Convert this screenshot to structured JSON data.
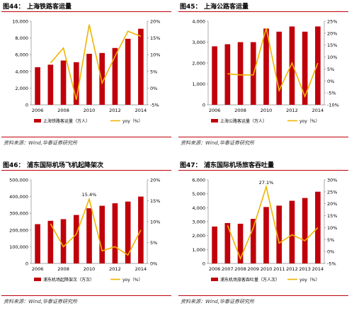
{
  "colors": {
    "bar": "#c0000b",
    "line": "#f0b400",
    "axis": "#888888",
    "frame": "#c0000b"
  },
  "source_text": "资料来源：Wind,华泰证券研究所",
  "chart_data": [
    {
      "type": "bar",
      "figure_label": "图44：",
      "title": "上海铁路客运量",
      "categories": [
        "2006",
        "2007",
        "2008",
        "2009",
        "2010",
        "2011",
        "2012",
        "2013",
        "2014"
      ],
      "x_tick_labels": [
        "2006",
        "2008",
        "2010",
        "2012",
        "2014"
      ],
      "series": [
        {
          "name": "上海铁路客运量（万人）",
          "axis": "left",
          "values": [
            4500,
            4800,
            5300,
            5100,
            6100,
            6200,
            6800,
            7900,
            9100
          ]
        },
        {
          "name": "yoy（%）",
          "axis": "right",
          "type": "line",
          "values": [
            null,
            7.5,
            12,
            -3.5,
            19,
            1.5,
            9.5,
            17,
            15.5
          ]
        }
      ],
      "ylim_left": [
        0,
        10000
      ],
      "ylim_right": [
        -5,
        20
      ],
      "left_ticks": [
        "0",
        "2,000",
        "4,000",
        "6,000",
        "8,000",
        "10,000"
      ],
      "left_tick_values": [
        0,
        2000,
        4000,
        6000,
        8000,
        10000
      ],
      "right_ticks": [
        "-5%",
        "0%",
        "5%",
        "10%",
        "15%",
        "20%"
      ],
      "right_tick_values": [
        -5,
        0,
        5,
        10,
        15,
        20
      ],
      "annotations": []
    },
    {
      "type": "bar",
      "figure_label": "图45：",
      "title": "上海公路客运量",
      "categories": [
        "2006",
        "2007",
        "2008",
        "2009",
        "2010",
        "2011",
        "2012",
        "2013",
        "2014"
      ],
      "x_tick_labels": [
        "2006",
        "2008",
        "2010",
        "2012",
        "2014"
      ],
      "series": [
        {
          "name": "上海公路客运量（万人）",
          "axis": "left",
          "values": [
            2800,
            2900,
            3000,
            3000,
            3650,
            3500,
            3750,
            3500,
            3750
          ]
        },
        {
          "name": "yoy（%）",
          "axis": "right",
          "type": "line",
          "values": [
            null,
            3,
            2.5,
            2.5,
            22,
            -4,
            7.5,
            -6.5,
            7.5
          ]
        }
      ],
      "ylim_left": [
        0,
        4000
      ],
      "ylim_right": [
        -10,
        25
      ],
      "left_ticks": [
        "0",
        "1,000",
        "2,000",
        "3,000",
        "4,000"
      ],
      "left_tick_values": [
        0,
        1000,
        2000,
        3000,
        4000
      ],
      "right_ticks": [
        "-10%",
        "-5%",
        "0%",
        "5%",
        "10%",
        "15%",
        "20%",
        "25%"
      ],
      "right_tick_values": [
        -10,
        -5,
        0,
        5,
        10,
        15,
        20,
        25
      ],
      "annotations": []
    },
    {
      "type": "bar",
      "figure_label": "图46：",
      "title": "浦东国际机场飞机起降架次",
      "categories": [
        "2006",
        "2007",
        "2008",
        "2009",
        "2010",
        "2011",
        "2012",
        "2013",
        "2014"
      ],
      "x_tick_labels": [
        "2006",
        "2008",
        "2010",
        "2012",
        "2014"
      ],
      "series": [
        {
          "name": "浦东机场起降架次（万次）",
          "axis": "left",
          "values": [
            235000,
            255000,
            265000,
            290000,
            330000,
            345000,
            360000,
            370000,
            400000
          ]
        },
        {
          "name": "yoy（%）",
          "axis": "right",
          "type": "line",
          "values": [
            null,
            9.5,
            4,
            7,
            15.4,
            3,
            4,
            2,
            8
          ]
        }
      ],
      "ylim_left": [
        0,
        500000
      ],
      "ylim_right": [
        0,
        20
      ],
      "left_ticks": [
        "0",
        "100,000",
        "200,000",
        "300,000",
        "400,000",
        "500,000"
      ],
      "left_tick_values": [
        0,
        100000,
        200000,
        300000,
        400000,
        500000
      ],
      "right_ticks": [
        "0%",
        "5%",
        "10%",
        "15%",
        "20%"
      ],
      "right_tick_values": [
        0,
        5,
        10,
        15,
        20
      ],
      "annotations": [
        {
          "text": "15.4%",
          "index": 4,
          "series": 1
        }
      ]
    },
    {
      "type": "bar",
      "figure_label": "图47：",
      "title": "浦东国际机场旅客吞吐量",
      "categories": [
        "2006",
        "2007",
        "2008",
        "2009",
        "2010",
        "2011",
        "2012",
        "2013",
        "2014"
      ],
      "x_tick_labels": [
        "2006",
        "2007",
        "2008",
        "2009",
        "2010",
        "2011",
        "2012",
        "2013",
        "2014"
      ],
      "series": [
        {
          "name": "浦东机场旅客吞吐量（万人次）",
          "axis": "left",
          "values": [
            2650,
            2900,
            2850,
            3200,
            4050,
            4150,
            4500,
            4700,
            5150
          ]
        },
        {
          "name": "yoy（%）",
          "axis": "right",
          "type": "line",
          "values": [
            null,
            11,
            -3,
            10,
            27.1,
            3.5,
            7,
            4.5,
            10
          ]
        }
      ],
      "ylim_left": [
        0,
        6000
      ],
      "ylim_right": [
        -5,
        30
      ],
      "left_ticks": [
        "0",
        "1,000",
        "2,000",
        "3,000",
        "4,000",
        "5,000",
        "6,000"
      ],
      "left_tick_values": [
        0,
        1000,
        2000,
        3000,
        4000,
        5000,
        6000
      ],
      "right_ticks": [
        "-5%",
        "0%",
        "5%",
        "10%",
        "15%",
        "20%",
        "25%",
        "30%"
      ],
      "right_tick_values": [
        -5,
        0,
        5,
        10,
        15,
        20,
        25,
        30
      ],
      "annotations": [
        {
          "text": "27.1%",
          "index": 4,
          "series": 1
        }
      ]
    }
  ]
}
